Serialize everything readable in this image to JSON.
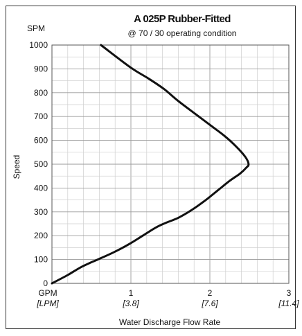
{
  "chart_data": {
    "type": "line",
    "title": "A 025P Rubber-Fitted",
    "subtitle": "@ 70 / 30 operating condition",
    "xlabel": "Water Discharge Flow Rate",
    "ylabel": "Speed",
    "y_unit": "SPM",
    "x_unit_primary": "GPM",
    "x_unit_secondary": "[LPM]",
    "xlim": [
      0,
      3
    ],
    "ylim": [
      0,
      1000
    ],
    "x_ticks": [
      {
        "primary": "1",
        "secondary": "[3.8]",
        "value": 1
      },
      {
        "primary": "2",
        "secondary": "[7.6]",
        "value": 2
      },
      {
        "primary": "3",
        "secondary": "[11.4]",
        "value": 3
      }
    ],
    "y_ticks": [
      0,
      100,
      200,
      300,
      400,
      500,
      600,
      700,
      800,
      900,
      1000
    ],
    "grid": true,
    "series": [
      {
        "x": [
          0,
          0.2,
          0.38,
          0.58,
          0.78,
          0.98,
          1.15,
          1.32,
          1.45,
          1.6,
          1.78,
          1.95,
          2.1,
          2.25,
          2.38,
          2.46,
          2.49,
          2.45,
          2.33,
          2.18,
          2.0,
          1.82,
          1.6,
          1.42,
          1.22,
          1.0,
          0.62
        ],
        "y": [
          0,
          35,
          70,
          100,
          130,
          165,
          200,
          235,
          255,
          275,
          310,
          350,
          390,
          430,
          460,
          485,
          500,
          530,
          575,
          620,
          665,
          710,
          765,
          815,
          860,
          905,
          1000
        ]
      }
    ]
  }
}
